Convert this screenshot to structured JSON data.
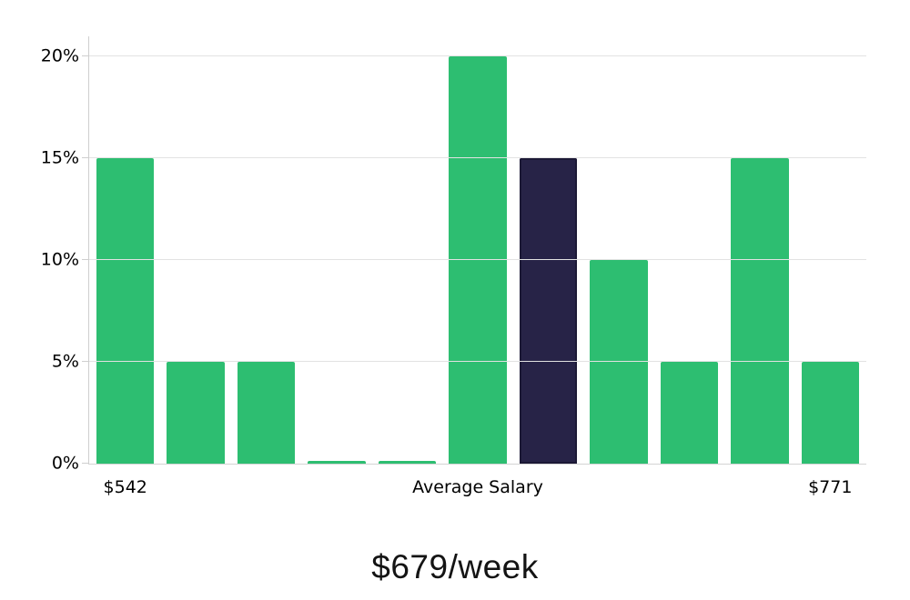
{
  "chart_data": {
    "type": "bar",
    "title": "$679/week",
    "values": [
      15,
      5,
      5,
      0.15,
      0.15,
      20,
      15,
      10,
      5,
      15,
      5
    ],
    "highlight_index": 6,
    "highlight_meaning": "average-salary-bar",
    "yticks": [
      0,
      5,
      10,
      15,
      20
    ],
    "ytick_labels": [
      "0%",
      "5%",
      "10%",
      "15%",
      "20%"
    ],
    "ylim": [
      0,
      21
    ],
    "x_axis_labels": [
      {
        "text": "$542",
        "anchor": "bar",
        "index": 0
      },
      {
        "text": "Average Salary",
        "anchor": "center"
      },
      {
        "text": "$771",
        "anchor": "bar",
        "index": 10
      }
    ],
    "xlabel": "",
    "ylabel": "",
    "legend_position": "none",
    "grid": "horizontal"
  },
  "colors": {
    "bar_green": "#2dbe71",
    "bar_highlight": "#272347",
    "bar_highlight_border": "#1c1936",
    "gridline": "#e2e2e2",
    "axis": "#cfcfcf",
    "tick_label": "#000000",
    "title": "#141414",
    "background": "#ffffff"
  }
}
